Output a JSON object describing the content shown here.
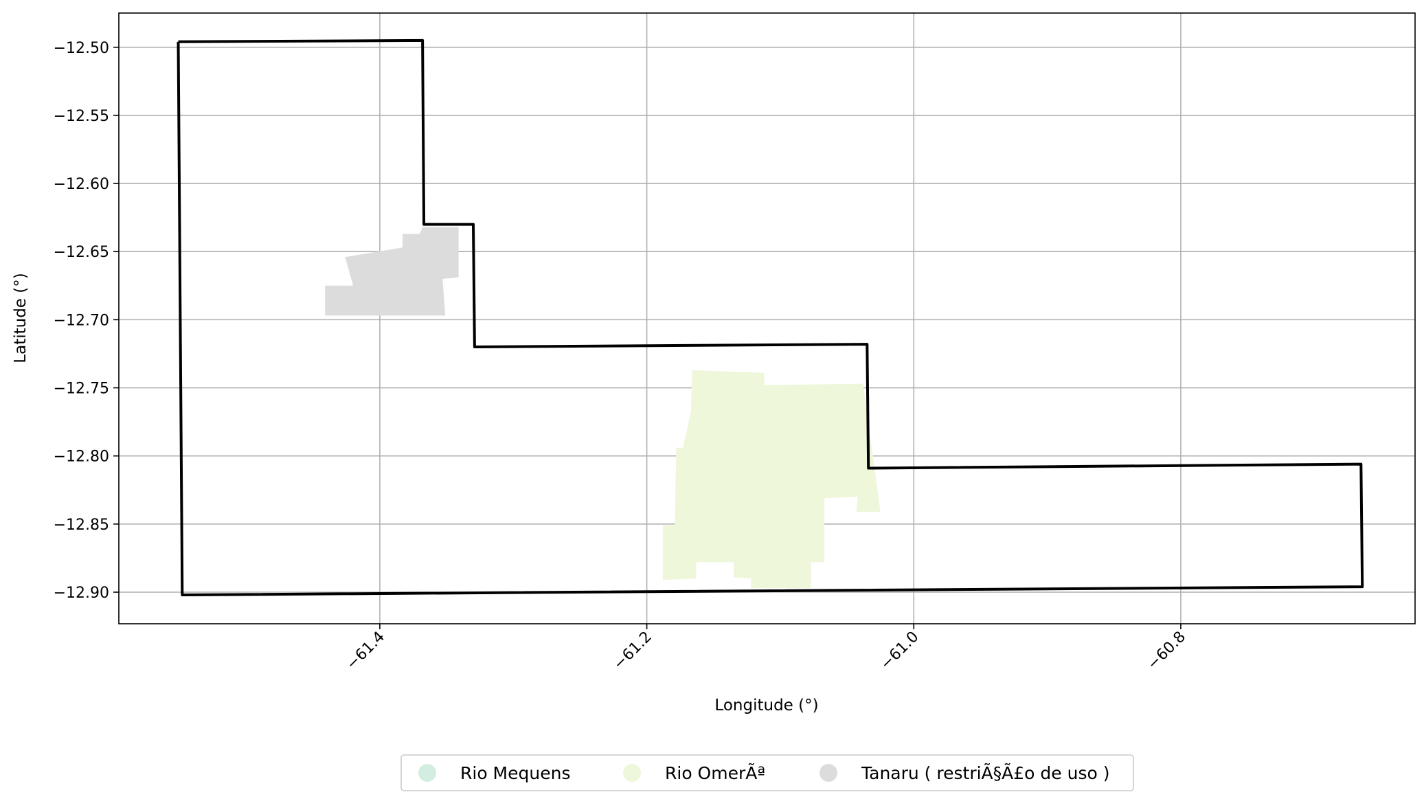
{
  "chart_data": {
    "type": "map",
    "xlabel": "Longitude (°)",
    "ylabel": "Latitude (°)",
    "xlim": [
      -61.5955,
      -60.6245
    ],
    "ylim": [
      -12.9232,
      -12.4749
    ],
    "xticks": [
      -61.4,
      -61.2,
      -61.0,
      -60.8
    ],
    "xtick_labels": [
      "−61.4",
      "−61.2",
      "−61.0",
      "−60.8"
    ],
    "yticks": [
      -12.5,
      -12.55,
      -12.6,
      -12.65,
      -12.7,
      -12.75,
      -12.8,
      -12.85,
      -12.9
    ],
    "ytick_labels": [
      "−12.50",
      "−12.55",
      "−12.60",
      "−12.65",
      "−12.70",
      "−12.75",
      "−12.80",
      "−12.85",
      "−12.90"
    ],
    "grid": true,
    "legend_placement": "bottom-center",
    "boundary": {
      "color": "#000000",
      "points": [
        [
          -61.551,
          -12.496
        ],
        [
          -61.368,
          -12.495
        ],
        [
          -61.367,
          -12.63
        ],
        [
          -61.33,
          -12.63
        ],
        [
          -61.329,
          -12.72
        ],
        [
          -61.035,
          -12.718
        ],
        [
          -61.034,
          -12.809
        ],
        [
          -60.665,
          -12.806
        ],
        [
          -60.664,
          -12.896
        ],
        [
          -61.548,
          -12.902
        ],
        [
          -61.551,
          -12.496
        ]
      ]
    },
    "areas": [
      {
        "name": "Rio Mequens",
        "color": "#d3ede0",
        "polygons": []
      },
      {
        "name": "Rio OmerÃª",
        "color": "#eef7da",
        "polygons": [
          [
            [
              -61.166,
              -12.737
            ],
            [
              -61.112,
              -12.739
            ],
            [
              -61.112,
              -12.748
            ],
            [
              -61.038,
              -12.747
            ],
            [
              -61.025,
              -12.841
            ],
            [
              -61.043,
              -12.841
            ],
            [
              -61.042,
              -12.83
            ],
            [
              -61.067,
              -12.831
            ],
            [
              -61.067,
              -12.878
            ],
            [
              -61.077,
              -12.878
            ],
            [
              -61.077,
              -12.897
            ],
            [
              -61.122,
              -12.897
            ],
            [
              -61.122,
              -12.89
            ],
            [
              -61.135,
              -12.889
            ],
            [
              -61.135,
              -12.878
            ],
            [
              -61.163,
              -12.878
            ],
            [
              -61.163,
              -12.89
            ],
            [
              -61.188,
              -12.891
            ],
            [
              -61.188,
              -12.851
            ],
            [
              -61.179,
              -12.851
            ],
            [
              -61.178,
              -12.794
            ],
            [
              -61.173,
              -12.794
            ],
            [
              -61.167,
              -12.768
            ],
            [
              -61.166,
              -12.737
            ]
          ]
        ]
      },
      {
        "name": "Tanaru ( restriÃ§Ã£o de uso )",
        "color": "#dcdcdc",
        "polygons": [
          [
            [
              -61.368,
              -12.632
            ],
            [
              -61.341,
              -12.632
            ],
            [
              -61.341,
              -12.669
            ],
            [
              -61.353,
              -12.67
            ],
            [
              -61.351,
              -12.697
            ],
            [
              -61.441,
              -12.697
            ],
            [
              -61.441,
              -12.675
            ],
            [
              -61.42,
              -12.675
            ],
            [
              -61.426,
              -12.654
            ],
            [
              -61.383,
              -12.647
            ],
            [
              -61.383,
              -12.637
            ],
            [
              -61.37,
              -12.637
            ],
            [
              -61.368,
              -12.632
            ]
          ]
        ]
      }
    ]
  }
}
